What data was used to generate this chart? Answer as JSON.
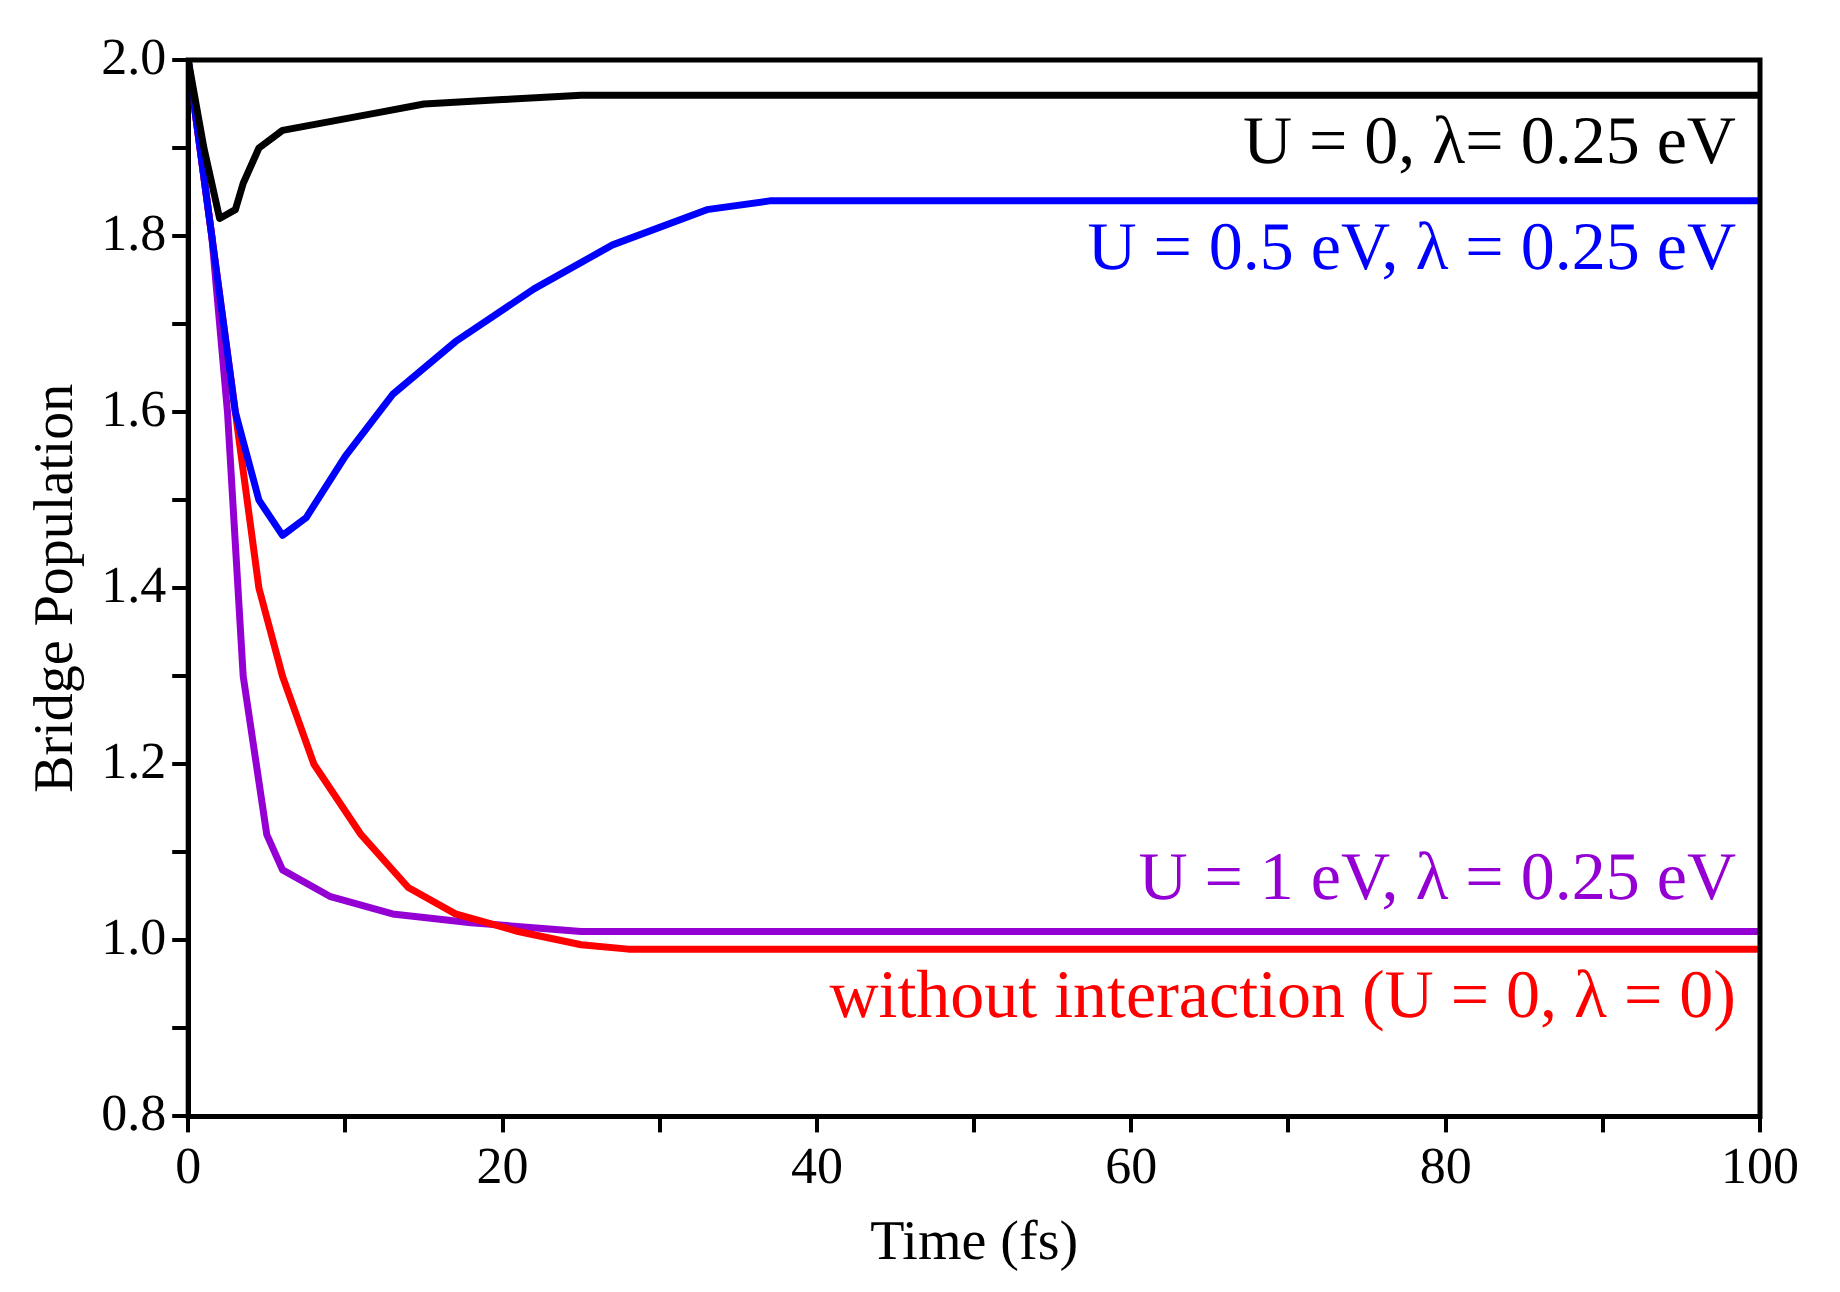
{
  "chart_data": {
    "type": "line",
    "xlabel": "Time (fs)",
    "ylabel": "Bridge Population",
    "xlim": [
      0,
      100
    ],
    "ylim": [
      0.8,
      2.0
    ],
    "xticks": [
      0,
      {
        "value": 10,
        "label": null
      },
      20,
      {
        "value": 30,
        "label": null
      },
      40,
      {
        "value": 50,
        "label": null
      },
      60,
      {
        "value": 70,
        "label": null
      },
      80,
      {
        "value": 90,
        "label": null
      },
      100
    ],
    "yticks": [
      {
        "value": 0.8,
        "label": "0.8"
      },
      {
        "value": 0.9,
        "label": null
      },
      {
        "value": 1.0,
        "label": "1.0"
      },
      {
        "value": 1.1,
        "label": null
      },
      1.2,
      {
        "value": 1.3,
        "label": null
      },
      1.4,
      {
        "value": 1.5,
        "label": null
      },
      1.6,
      {
        "value": 1.7,
        "label": null
      },
      1.8,
      {
        "value": 1.9,
        "label": null
      },
      {
        "value": 2.0,
        "label": "2.0"
      }
    ],
    "grid": false,
    "legend": false,
    "marker": "none",
    "line_style": "solid",
    "series": [
      {
        "name": "U = 0, λ= 0.25 eV",
        "color": "#000000",
        "x": [
          0,
          1,
          2,
          3,
          3.5,
          4.5,
          6,
          9,
          12,
          15,
          20,
          25,
          30,
          100
        ],
        "values": [
          2.0,
          1.9,
          1.82,
          1.83,
          1.86,
          1.9,
          1.92,
          1.93,
          1.94,
          1.95,
          1.955,
          1.96,
          1.96,
          1.96
        ]
      },
      {
        "name": "U = 0.5 eV, λ = 0.25 eV",
        "color": "#0000ff",
        "x": [
          0,
          1.5,
          3,
          4.5,
          6,
          7.5,
          10,
          13,
          17,
          22,
          27,
          33,
          37,
          100
        ],
        "values": [
          2.0,
          1.8,
          1.6,
          1.5,
          1.46,
          1.48,
          1.55,
          1.62,
          1.68,
          1.74,
          1.79,
          1.83,
          1.84,
          1.84
        ]
      },
      {
        "name": "without interaction (U = 0, λ = 0)",
        "color": "#ff0000",
        "x": [
          0,
          3,
          4.5,
          6,
          8,
          11,
          14,
          17,
          21,
          25,
          28,
          32,
          100
        ],
        "values": [
          2.0,
          1.6,
          1.4,
          1.3,
          1.2,
          1.12,
          1.06,
          1.03,
          1.01,
          0.995,
          0.99,
          0.99,
          0.99
        ]
      },
      {
        "name": "U = 1 eV, λ = 0.25 eV",
        "color": "#9400d3",
        "x": [
          0,
          1.5,
          2.5,
          3.5,
          5,
          6,
          9,
          13,
          18,
          25,
          100
        ],
        "values": [
          2.0,
          1.8,
          1.6,
          1.3,
          1.12,
          1.08,
          1.05,
          1.03,
          1.02,
          1.01,
          1.01
        ]
      }
    ]
  }
}
